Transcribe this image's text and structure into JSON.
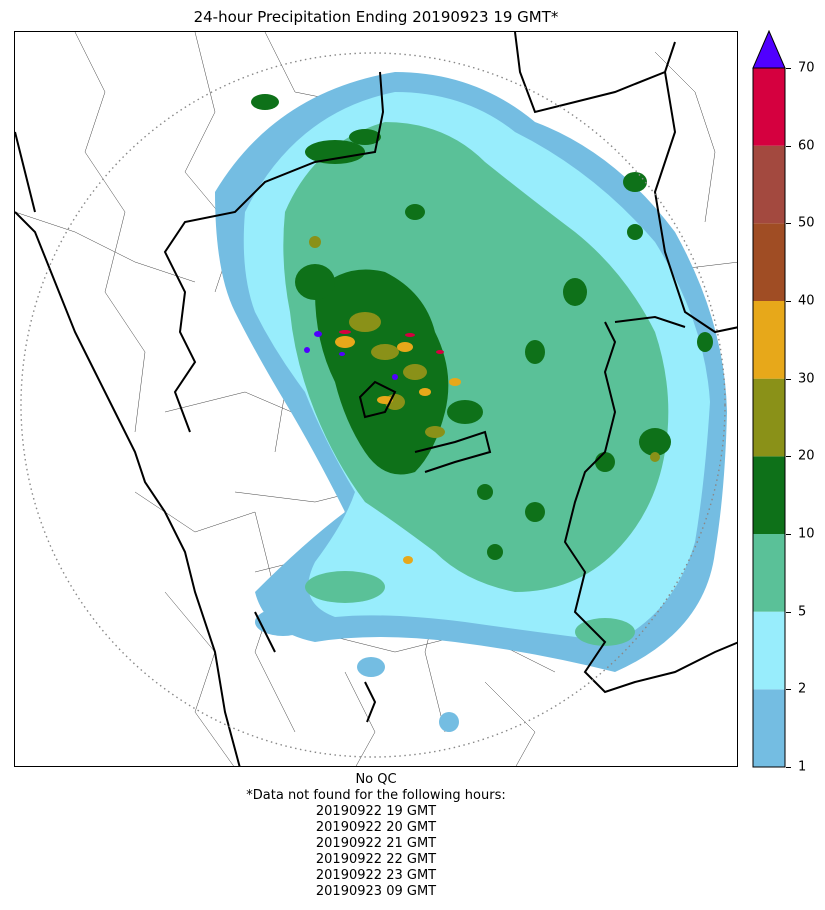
{
  "title": "24-hour Precipitation Ending 20190923 19 GMT*",
  "colorbar": {
    "ticks": [
      "1",
      "2",
      "5",
      "10",
      "20",
      "30",
      "40",
      "50",
      "60",
      "70"
    ],
    "colors": [
      "#74bde2",
      "#98edfc",
      "#5ac198",
      "#0e7119",
      "#8a9118",
      "#e7a81a",
      "#a04d24",
      "#a3493f",
      "#d5003f"
    ],
    "extend_color": "#5000ff"
  },
  "footer": {
    "qc": "No QC",
    "note": "*Data not found for the following hours:",
    "hours": [
      "20190922 19 GMT",
      "20190922 20 GMT",
      "20190922 21 GMT",
      "20190922 22 GMT",
      "20190922 23 GMT",
      "20190923 09 GMT"
    ]
  }
}
